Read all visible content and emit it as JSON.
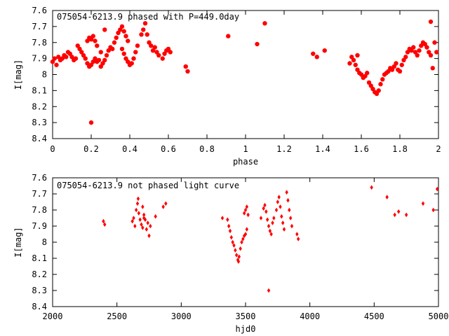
{
  "chart_data": [
    {
      "type": "scatter",
      "title": "075054-6213.9 phased with P=449.0day",
      "xlabel": "phase",
      "ylabel": "I[mag]",
      "xlim": [
        0,
        2
      ],
      "ylim": [
        8.4,
        7.6
      ],
      "y_inverted": true,
      "grid": false,
      "marker": "filled-circle",
      "color": "#ff0000",
      "xticks": [
        "0",
        "0.2",
        "0.4",
        "0.6",
        "0.8",
        "1",
        "1.2",
        "1.4",
        "1.6",
        "1.8",
        "2"
      ],
      "yticks": [
        "7.6",
        "7.7",
        "7.8",
        "7.9",
        "8",
        "8.1",
        "8.2",
        "8.3",
        "8.4"
      ],
      "points": [
        [
          0.0,
          7.92
        ],
        [
          0.01,
          7.9
        ],
        [
          0.02,
          7.94
        ],
        [
          0.03,
          7.89
        ],
        [
          0.04,
          7.91
        ],
        [
          0.05,
          7.9
        ],
        [
          0.06,
          7.88
        ],
        [
          0.07,
          7.89
        ],
        [
          0.08,
          7.86
        ],
        [
          0.09,
          7.87
        ],
        [
          0.1,
          7.89
        ],
        [
          0.11,
          7.91
        ],
        [
          0.12,
          7.9
        ],
        [
          0.13,
          7.82
        ],
        [
          0.14,
          7.84
        ],
        [
          0.15,
          7.86
        ],
        [
          0.16,
          7.88
        ],
        [
          0.17,
          7.9
        ],
        [
          0.18,
          7.93
        ],
        [
          0.19,
          7.95
        ],
        [
          0.2,
          7.94
        ],
        [
          0.21,
          7.92
        ],
        [
          0.22,
          7.9
        ],
        [
          0.23,
          7.92
        ],
        [
          0.24,
          7.91
        ],
        [
          0.25,
          7.86
        ],
        [
          0.18,
          7.79
        ],
        [
          0.19,
          7.77
        ],
        [
          0.2,
          7.78
        ],
        [
          0.21,
          7.76
        ],
        [
          0.22,
          7.79
        ],
        [
          0.23,
          7.82
        ],
        [
          0.2,
          8.3
        ],
        [
          0.25,
          7.95
        ],
        [
          0.26,
          7.93
        ],
        [
          0.27,
          7.91
        ],
        [
          0.28,
          7.88
        ],
        [
          0.29,
          7.85
        ],
        [
          0.3,
          7.83
        ],
        [
          0.31,
          7.84
        ],
        [
          0.27,
          7.72
        ],
        [
          0.32,
          7.8
        ],
        [
          0.33,
          7.77
        ],
        [
          0.34,
          7.74
        ],
        [
          0.35,
          7.72
        ],
        [
          0.36,
          7.7
        ],
        [
          0.37,
          7.73
        ],
        [
          0.38,
          7.76
        ],
        [
          0.39,
          7.79
        ],
        [
          0.36,
          7.84
        ],
        [
          0.37,
          7.87
        ],
        [
          0.38,
          7.9
        ],
        [
          0.39,
          7.92
        ],
        [
          0.4,
          7.94
        ],
        [
          0.41,
          7.93
        ],
        [
          0.42,
          7.9
        ],
        [
          0.43,
          7.86
        ],
        [
          0.44,
          7.82
        ],
        [
          0.46,
          7.75
        ],
        [
          0.47,
          7.72
        ],
        [
          0.48,
          7.68
        ],
        [
          0.49,
          7.75
        ],
        [
          0.5,
          7.8
        ],
        [
          0.51,
          7.82
        ],
        [
          0.52,
          7.85
        ],
        [
          0.53,
          7.83
        ],
        [
          0.54,
          7.86
        ],
        [
          0.55,
          7.88
        ],
        [
          0.57,
          7.9
        ],
        [
          0.58,
          7.87
        ],
        [
          0.59,
          7.85
        ],
        [
          0.6,
          7.84
        ],
        [
          0.61,
          7.86
        ],
        [
          0.69,
          7.95
        ],
        [
          0.7,
          7.98
        ],
        [
          0.91,
          7.76
        ],
        [
          1.06,
          7.81
        ],
        [
          1.1,
          7.68
        ],
        [
          1.35,
          7.87
        ],
        [
          1.37,
          7.89
        ],
        [
          1.41,
          7.85
        ],
        [
          1.54,
          7.93
        ],
        [
          1.55,
          7.89
        ],
        [
          1.56,
          7.91
        ],
        [
          1.57,
          7.94
        ],
        [
          1.58,
          7.97
        ],
        [
          1.59,
          7.99
        ],
        [
          1.6,
          8.0
        ],
        [
          1.61,
          8.02
        ],
        [
          1.62,
          8.01
        ],
        [
          1.63,
          7.99
        ],
        [
          1.64,
          8.05
        ],
        [
          1.65,
          8.07
        ],
        [
          1.66,
          8.09
        ],
        [
          1.67,
          8.11
        ],
        [
          1.68,
          8.12
        ],
        [
          1.69,
          8.1
        ],
        [
          1.7,
          8.06
        ],
        [
          1.71,
          8.03
        ],
        [
          1.72,
          8.0
        ],
        [
          1.73,
          7.99
        ],
        [
          1.74,
          7.98
        ],
        [
          1.75,
          7.96
        ],
        [
          1.76,
          7.97
        ],
        [
          1.77,
          7.95
        ],
        [
          1.78,
          7.93
        ],
        [
          1.79,
          7.97
        ],
        [
          1.8,
          7.98
        ],
        [
          1.81,
          7.94
        ],
        [
          1.82,
          7.91
        ],
        [
          1.83,
          7.89
        ],
        [
          1.84,
          7.86
        ],
        [
          1.85,
          7.84
        ],
        [
          1.86,
          7.85
        ],
        [
          1.87,
          7.83
        ],
        [
          1.88,
          7.86
        ],
        [
          1.89,
          7.88
        ],
        [
          1.9,
          7.85
        ],
        [
          1.91,
          7.82
        ],
        [
          1.92,
          7.8
        ],
        [
          1.93,
          7.81
        ],
        [
          1.94,
          7.83
        ],
        [
          1.95,
          7.86
        ],
        [
          1.96,
          7.88
        ],
        [
          1.97,
          7.96
        ],
        [
          1.98,
          7.8
        ],
        [
          1.99,
          7.86
        ],
        [
          1.96,
          7.67
        ],
        [
          1.58,
          7.88
        ]
      ]
    },
    {
      "type": "scatter",
      "title": "075054-6213.9 not phased light curve",
      "xlabel": "hjd0",
      "ylabel": "I[mag]",
      "xlim": [
        2000,
        5000
      ],
      "ylim": [
        8.4,
        7.6
      ],
      "y_inverted": true,
      "grid": false,
      "marker": "filled-diamond",
      "color": "#ff0000",
      "xticks": [
        "2000",
        "2500",
        "3000",
        "3500",
        "4000",
        "4500",
        "5000"
      ],
      "yticks": [
        "7.6",
        "7.7",
        "7.8",
        "7.9",
        "8",
        "8.1",
        "8.2",
        "8.3",
        "8.4"
      ],
      "points": [
        [
          2395,
          7.87
        ],
        [
          2405,
          7.89
        ],
        [
          2620,
          7.87
        ],
        [
          2630,
          7.85
        ],
        [
          2640,
          7.9
        ],
        [
          2650,
          7.8
        ],
        [
          2660,
          7.76
        ],
        [
          2665,
          7.73
        ],
        [
          2670,
          7.82
        ],
        [
          2680,
          7.86
        ],
        [
          2690,
          7.89
        ],
        [
          2700,
          7.91
        ],
        [
          2710,
          7.83
        ],
        [
          2720,
          7.86
        ],
        [
          2730,
          7.92
        ],
        [
          2740,
          7.88
        ],
        [
          2750,
          7.96
        ],
        [
          2760,
          7.9
        ],
        [
          2700,
          7.78
        ],
        [
          2710,
          7.85
        ],
        [
          2800,
          7.84
        ],
        [
          2860,
          7.78
        ],
        [
          2880,
          7.76
        ],
        [
          3320,
          7.85
        ],
        [
          3360,
          7.86
        ],
        [
          3370,
          7.9
        ],
        [
          3380,
          7.93
        ],
        [
          3390,
          7.97
        ],
        [
          3400,
          8.0
        ],
        [
          3410,
          8.02
        ],
        [
          3420,
          8.05
        ],
        [
          3430,
          8.08
        ],
        [
          3440,
          8.11
        ],
        [
          3445,
          8.12
        ],
        [
          3450,
          8.09
        ],
        [
          3460,
          8.04
        ],
        [
          3470,
          8.0
        ],
        [
          3480,
          7.98
        ],
        [
          3490,
          7.96
        ],
        [
          3500,
          7.95
        ],
        [
          3510,
          7.92
        ],
        [
          3490,
          7.82
        ],
        [
          3500,
          7.8
        ],
        [
          3510,
          7.78
        ],
        [
          3520,
          7.83
        ],
        [
          3620,
          7.85
        ],
        [
          3640,
          7.79
        ],
        [
          3650,
          7.77
        ],
        [
          3660,
          7.81
        ],
        [
          3670,
          7.86
        ],
        [
          3680,
          7.9
        ],
        [
          3690,
          7.93
        ],
        [
          3700,
          7.95
        ],
        [
          3710,
          7.88
        ],
        [
          3720,
          7.85
        ],
        [
          3740,
          7.8
        ],
        [
          3750,
          7.75
        ],
        [
          3760,
          7.72
        ],
        [
          3770,
          7.78
        ],
        [
          3780,
          7.84
        ],
        [
          3790,
          7.88
        ],
        [
          3800,
          7.92
        ],
        [
          3820,
          7.69
        ],
        [
          3830,
          7.74
        ],
        [
          3840,
          7.8
        ],
        [
          3850,
          7.85
        ],
        [
          3860,
          7.9
        ],
        [
          3900,
          7.95
        ],
        [
          3910,
          7.98
        ],
        [
          3680,
          8.3
        ],
        [
          4480,
          7.66
        ],
        [
          4600,
          7.72
        ],
        [
          4660,
          7.83
        ],
        [
          4690,
          7.81
        ],
        [
          4750,
          7.83
        ],
        [
          4880,
          7.76
        ],
        [
          4960,
          7.8
        ],
        [
          4990,
          7.67
        ]
      ]
    }
  ]
}
